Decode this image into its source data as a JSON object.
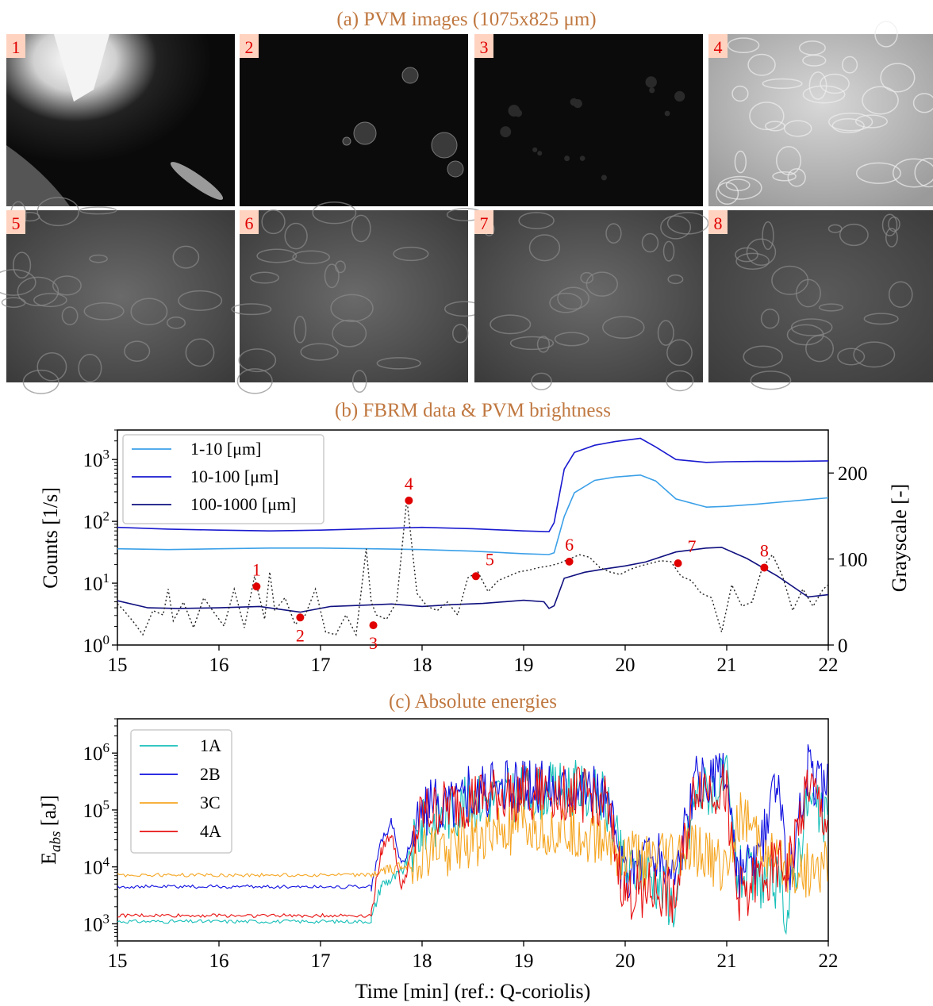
{
  "panels": {
    "a_title": "(a) PVM images (1075x825 μm)",
    "b_title": "(b) FBRM data & PVM brightness",
    "c_title": "(c) Absolute energies"
  },
  "images": [
    {
      "label": "1",
      "style": "dark-with-bright-corner"
    },
    {
      "label": "2",
      "style": "dark-sparse-particles"
    },
    {
      "label": "3",
      "style": "dark-faint-flocs"
    },
    {
      "label": "4",
      "style": "bright-textured"
    },
    {
      "label": "5",
      "style": "gray-textured"
    },
    {
      "label": "6",
      "style": "gray-textured"
    },
    {
      "label": "7",
      "style": "gray-textured"
    },
    {
      "label": "8",
      "style": "gray-textured-faint"
    }
  ],
  "chart_data": [
    {
      "type": "line",
      "title": "(b) FBRM data & PVM brightness",
      "xlim": [
        15,
        22
      ],
      "xticks": [
        15,
        16,
        17,
        18,
        19,
        20,
        21,
        22
      ],
      "ylabel": "Counts [1/s]",
      "ylabel_color": "#0000ff",
      "yscale": "log",
      "ylim": [
        1,
        3000
      ],
      "ytick_labels": [
        "10^0",
        "10^1",
        "10^2",
        "10^3"
      ],
      "y2label": "Grayscale [-]",
      "y2lim": [
        0,
        250
      ],
      "y2ticks": [
        0,
        100,
        200
      ],
      "legend_position": "upper-left",
      "series": [
        {
          "name": "1-10 [μm]",
          "color": "#3ba0e8",
          "x": [
            15,
            15.5,
            16,
            16.5,
            17,
            17.5,
            18,
            18.5,
            19,
            19.25,
            19.3,
            19.4,
            19.5,
            19.7,
            19.9,
            20.15,
            20.3,
            20.5,
            20.8,
            21,
            21.3,
            21.6,
            22
          ],
          "y": [
            36,
            35,
            36,
            37,
            37,
            36,
            35,
            33,
            30,
            29,
            31,
            120,
            290,
            460,
            520,
            560,
            450,
            230,
            170,
            175,
            190,
            210,
            240
          ]
        },
        {
          "name": "10-100 [μm]",
          "color": "#1a1ad0",
          "x": [
            15,
            15.5,
            16,
            16.5,
            17,
            17.5,
            18,
            18.5,
            19,
            19.25,
            19.3,
            19.4,
            19.5,
            19.7,
            19.9,
            20.15,
            20.3,
            20.5,
            20.8,
            21,
            21.3,
            21.6,
            22
          ],
          "y": [
            80,
            75,
            72,
            70,
            72,
            76,
            80,
            76,
            70,
            68,
            95,
            700,
            1300,
            1700,
            1950,
            2200,
            1600,
            1000,
            900,
            920,
            930,
            930,
            950
          ]
        },
        {
          "name": "100-1000 [μm]",
          "color": "#101080",
          "x": [
            15,
            15.3,
            15.6,
            16,
            16.4,
            16.8,
            17.1,
            17.4,
            17.7,
            18,
            18.3,
            18.6,
            19,
            19.2,
            19.25,
            19.3,
            19.4,
            19.6,
            19.8,
            20,
            20.2,
            20.5,
            20.8,
            20.95,
            21.2,
            21.5,
            21.8,
            22
          ],
          "y": [
            5.2,
            4.0,
            3.9,
            4.0,
            4.2,
            3.4,
            4.2,
            4.4,
            4.6,
            4.2,
            4.5,
            4.7,
            5.3,
            5.0,
            3.9,
            4.3,
            12,
            15,
            17,
            19,
            22,
            32,
            37,
            38,
            25,
            13,
            6,
            6.5
          ]
        },
        {
          "name": "PVM brightness",
          "axis": "right",
          "style": "dotted",
          "color": "#222222",
          "x": [
            15,
            15.05,
            15.15,
            15.25,
            15.35,
            15.45,
            15.5,
            15.55,
            15.65,
            15.75,
            15.85,
            15.95,
            16.05,
            16.15,
            16.25,
            16.35,
            16.45,
            16.5,
            16.55,
            16.65,
            16.75,
            16.85,
            16.95,
            17.05,
            17.15,
            17.25,
            17.35,
            17.45,
            17.5,
            17.55,
            17.65,
            17.75,
            17.85,
            17.95,
            18.05,
            18.15,
            18.25,
            18.35,
            18.45,
            18.55,
            18.65,
            18.75,
            18.85,
            18.95,
            19.05,
            19.15,
            19.25,
            19.35,
            19.45,
            19.55,
            19.65,
            19.75,
            19.85,
            19.95,
            20.05,
            20.15,
            20.25,
            20.35,
            20.45,
            20.55,
            20.65,
            20.75,
            20.85,
            20.95,
            21.05,
            21.15,
            21.25,
            21.35,
            21.45,
            21.55,
            21.65,
            21.75,
            21.85,
            21.95,
            22
          ],
          "y": [
            48,
            42,
            28,
            12,
            40,
            35,
            65,
            28,
            50,
            20,
            55,
            38,
            22,
            65,
            20,
            80,
            30,
            85,
            40,
            55,
            24,
            35,
            65,
            15,
            12,
            35,
            12,
            112,
            50,
            35,
            30,
            50,
            170,
            60,
            45,
            40,
            50,
            35,
            78,
            85,
            62,
            75,
            80,
            85,
            87,
            90,
            92,
            95,
            100,
            105,
            102,
            90,
            85,
            82,
            88,
            92,
            95,
            98,
            97,
            80,
            75,
            60,
            55,
            15,
            70,
            45,
            50,
            90,
            105,
            80,
            40,
            65,
            45,
            65,
            70
          ]
        }
      ],
      "markers": [
        {
          "label": "1",
          "x": 16.37,
          "grayscale": 68
        },
        {
          "label": "2",
          "x": 16.8,
          "grayscale": 32
        },
        {
          "label": "3",
          "x": 17.52,
          "grayscale": 23
        },
        {
          "label": "4",
          "x": 17.87,
          "grayscale": 168
        },
        {
          "label": "5",
          "x": 18.53,
          "grayscale": 80
        },
        {
          "label": "6",
          "x": 19.45,
          "grayscale": 97
        },
        {
          "label": "7",
          "x": 20.52,
          "grayscale": 95
        },
        {
          "label": "8",
          "x": 21.37,
          "grayscale": 90
        }
      ]
    },
    {
      "type": "line",
      "title": "(c) Absolute energies",
      "xlabel": "Time [min] (ref.: Q-coriolis)",
      "ylabel": "E",
      "ylabel_subscript": "abs",
      "ylabel_unit": " [aJ]",
      "yscale": "log",
      "ylim": [
        500,
        4000000
      ],
      "ytick_labels": [
        "10^3",
        "10^4",
        "10^5",
        "10^6"
      ],
      "xlim": [
        15,
        22
      ],
      "xticks": [
        15,
        16,
        17,
        18,
        19,
        20,
        21,
        22
      ],
      "legend_position": "upper-left",
      "series": [
        {
          "name": "1A",
          "color": "#17bfb8",
          "baseline": 1100,
          "active": [
            [
              17.5,
              1200
            ],
            [
              17.6,
              5000
            ],
            [
              17.7,
              6000
            ],
            [
              17.8,
              8000
            ],
            [
              18,
              50000
            ],
            [
              18.5,
              150000
            ],
            [
              19,
              200000
            ],
            [
              19.5,
              250000
            ],
            [
              19.8,
              150000
            ],
            [
              20,
              8000
            ],
            [
              20.2,
              10000
            ],
            [
              20.5,
              2000
            ],
            [
              20.7,
              200000
            ],
            [
              21,
              300000
            ],
            [
              21.1,
              8000
            ],
            [
              21.3,
              6000
            ],
            [
              21.5,
              5000
            ],
            [
              21.6,
              1500
            ],
            [
              21.8,
              150000
            ],
            [
              22,
              50000
            ]
          ]
        },
        {
          "name": "2B",
          "color": "#1010e0",
          "baseline": 4500,
          "active": [
            [
              17.5,
              4500
            ],
            [
              17.6,
              30000
            ],
            [
              17.7,
              60000
            ],
            [
              17.8,
              10000
            ],
            [
              18,
              100000
            ],
            [
              18.5,
              200000
            ],
            [
              19,
              250000
            ],
            [
              19.5,
              300000
            ],
            [
              19.8,
              200000
            ],
            [
              20,
              6000
            ],
            [
              20.2,
              20000
            ],
            [
              20.5,
              8000
            ],
            [
              20.7,
              300000
            ],
            [
              21,
              400000
            ],
            [
              21.1,
              6000
            ],
            [
              21.3,
              10000
            ],
            [
              21.5,
              300000
            ],
            [
              21.6,
              5000
            ],
            [
              21.8,
              500000
            ],
            [
              22,
              200000
            ]
          ]
        },
        {
          "name": "3C",
          "color": "#f5a623",
          "baseline": 7200,
          "active": [
            [
              17.5,
              7200
            ],
            [
              17.6,
              8000
            ],
            [
              17.7,
              9000
            ],
            [
              17.8,
              10000
            ],
            [
              18,
              15000
            ],
            [
              18.5,
              30000
            ],
            [
              19,
              50000
            ],
            [
              19.5,
              40000
            ],
            [
              19.8,
              30000
            ],
            [
              20,
              15000
            ],
            [
              20.2,
              12000
            ],
            [
              20.5,
              15000
            ],
            [
              20.7,
              20000
            ],
            [
              21,
              10000
            ],
            [
              21.1,
              80000
            ],
            [
              21.3,
              30000
            ],
            [
              21.5,
              10000
            ],
            [
              21.6,
              9000
            ],
            [
              21.8,
              9000
            ],
            [
              22,
              9000
            ]
          ]
        },
        {
          "name": "4A",
          "color": "#e81010",
          "baseline": 1400,
          "active": [
            [
              17.5,
              1500
            ],
            [
              17.6,
              20000
            ],
            [
              17.7,
              40000
            ],
            [
              17.8,
              4000
            ],
            [
              18,
              80000
            ],
            [
              18.5,
              150000
            ],
            [
              19,
              200000
            ],
            [
              19.5,
              200000
            ],
            [
              19.8,
              150000
            ],
            [
              20,
              3000
            ],
            [
              20.2,
              4000
            ],
            [
              20.5,
              3000
            ],
            [
              20.7,
              300000
            ],
            [
              21,
              200000
            ],
            [
              21.1,
              3000
            ],
            [
              21.3,
              6000
            ],
            [
              21.5,
              10000
            ],
            [
              21.6,
              8000
            ],
            [
              21.8,
              300000
            ],
            [
              22,
              50000
            ]
          ]
        }
      ]
    }
  ]
}
